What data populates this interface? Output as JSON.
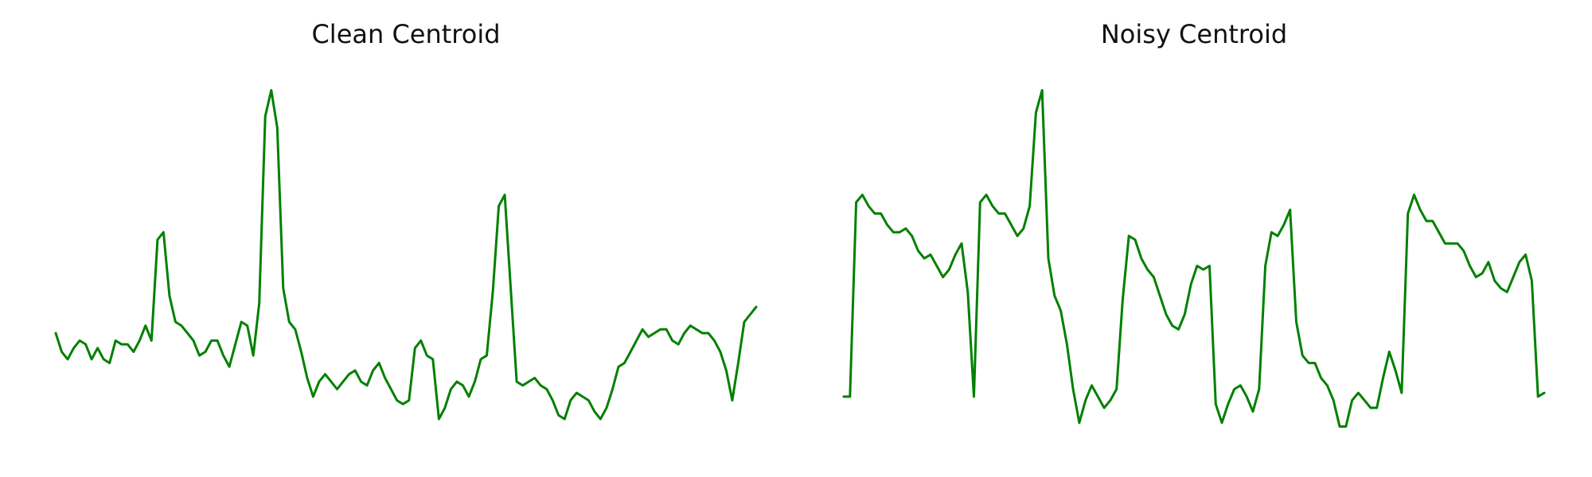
{
  "chart_data": [
    {
      "type": "line",
      "title": "Clean Centroid",
      "xlabel": "",
      "ylabel": "",
      "axes_visible": false,
      "grid": false,
      "ylim": [
        0,
        1
      ],
      "series": [
        {
          "color": "#008000",
          "values": [
            0.3,
            0.25,
            0.23,
            0.26,
            0.28,
            0.27,
            0.23,
            0.26,
            0.23,
            0.22,
            0.28,
            0.27,
            0.27,
            0.25,
            0.28,
            0.32,
            0.28,
            0.55,
            0.57,
            0.4,
            0.33,
            0.32,
            0.3,
            0.28,
            0.24,
            0.25,
            0.28,
            0.28,
            0.24,
            0.21,
            0.27,
            0.33,
            0.32,
            0.24,
            0.38,
            0.88,
            0.95,
            0.85,
            0.42,
            0.33,
            0.31,
            0.25,
            0.18,
            0.13,
            0.17,
            0.19,
            0.17,
            0.15,
            0.17,
            0.19,
            0.2,
            0.17,
            0.16,
            0.2,
            0.22,
            0.18,
            0.15,
            0.12,
            0.11,
            0.12,
            0.26,
            0.28,
            0.24,
            0.23,
            0.07,
            0.1,
            0.15,
            0.17,
            0.16,
            0.13,
            0.17,
            0.23,
            0.24,
            0.41,
            0.64,
            0.67,
            0.42,
            0.17,
            0.16,
            0.17,
            0.18,
            0.16,
            0.15,
            0.12,
            0.08,
            0.07,
            0.12,
            0.14,
            0.13,
            0.12,
            0.09,
            0.07,
            0.1,
            0.15,
            0.21,
            0.22,
            0.25,
            0.28,
            0.31,
            0.29,
            0.3,
            0.31,
            0.31,
            0.28,
            0.27,
            0.3,
            0.32,
            0.31,
            0.3,
            0.3,
            0.28,
            0.25,
            0.2,
            0.12,
            0.22,
            0.33,
            0.35,
            0.37
          ]
        }
      ]
    },
    {
      "type": "line",
      "title": "Noisy Centroid",
      "xlabel": "",
      "ylabel": "",
      "axes_visible": false,
      "grid": false,
      "ylim": [
        0,
        1
      ],
      "series": [
        {
          "color": "#008000",
          "values": [
            0.13,
            0.13,
            0.65,
            0.67,
            0.64,
            0.62,
            0.62,
            0.59,
            0.57,
            0.57,
            0.58,
            0.56,
            0.52,
            0.5,
            0.51,
            0.48,
            0.45,
            0.47,
            0.51,
            0.54,
            0.41,
            0.13,
            0.65,
            0.67,
            0.64,
            0.62,
            0.62,
            0.59,
            0.56,
            0.58,
            0.64,
            0.89,
            0.95,
            0.5,
            0.4,
            0.36,
            0.27,
            0.15,
            0.06,
            0.12,
            0.16,
            0.13,
            0.1,
            0.12,
            0.15,
            0.39,
            0.56,
            0.55,
            0.5,
            0.47,
            0.45,
            0.4,
            0.35,
            0.32,
            0.31,
            0.35,
            0.43,
            0.48,
            0.47,
            0.48,
            0.11,
            0.06,
            0.11,
            0.15,
            0.16,
            0.13,
            0.09,
            0.15,
            0.48,
            0.57,
            0.56,
            0.59,
            0.63,
            0.33,
            0.24,
            0.22,
            0.22,
            0.18,
            0.16,
            0.12,
            0.05,
            0.05,
            0.12,
            0.14,
            0.12,
            0.1,
            0.1,
            0.18,
            0.25,
            0.2,
            0.14,
            0.62,
            0.67,
            0.63,
            0.6,
            0.6,
            0.57,
            0.54,
            0.54,
            0.54,
            0.52,
            0.48,
            0.45,
            0.46,
            0.49,
            0.44,
            0.42,
            0.41,
            0.45,
            0.49,
            0.51,
            0.44,
            0.13,
            0.14
          ]
        }
      ]
    }
  ]
}
